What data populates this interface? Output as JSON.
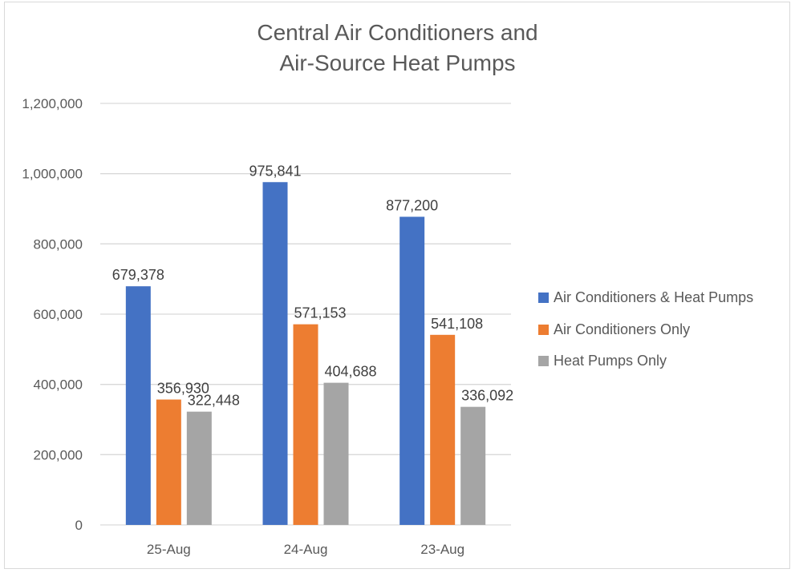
{
  "chart_data": {
    "type": "bar",
    "title": [
      "Central Air Conditioners and",
      "Air-Source Heat Pumps"
    ],
    "xlabel": "",
    "ylabel": "",
    "categories": [
      "25-Aug",
      "24-Aug",
      "23-Aug"
    ],
    "series": [
      {
        "name": "Air Conditioners & Heat Pumps",
        "color": "#4472c4",
        "values": [
          679378,
          975841,
          877200
        ],
        "labels": [
          "679,378",
          "975,841",
          "877,200"
        ]
      },
      {
        "name": "Air Conditioners Only",
        "color": "#ed7d31",
        "values": [
          356930,
          571153,
          541108
        ],
        "labels": [
          "356,930",
          "571,153",
          "541,108"
        ]
      },
      {
        "name": "Heat Pumps Only",
        "color": "#a5a5a5",
        "values": [
          322448,
          404688,
          336092
        ],
        "labels": [
          "322,448",
          "404,688",
          "336,092"
        ]
      }
    ],
    "ylim": [
      0,
      1200000
    ],
    "yticks": [
      0,
      200000,
      400000,
      600000,
      800000,
      1000000,
      1200000
    ],
    "ytick_labels": [
      "0",
      "200,000",
      "400,000",
      "600,000",
      "800,000",
      "1,000,000",
      "1,200,000"
    ],
    "grid": true,
    "legend_position": "right"
  }
}
